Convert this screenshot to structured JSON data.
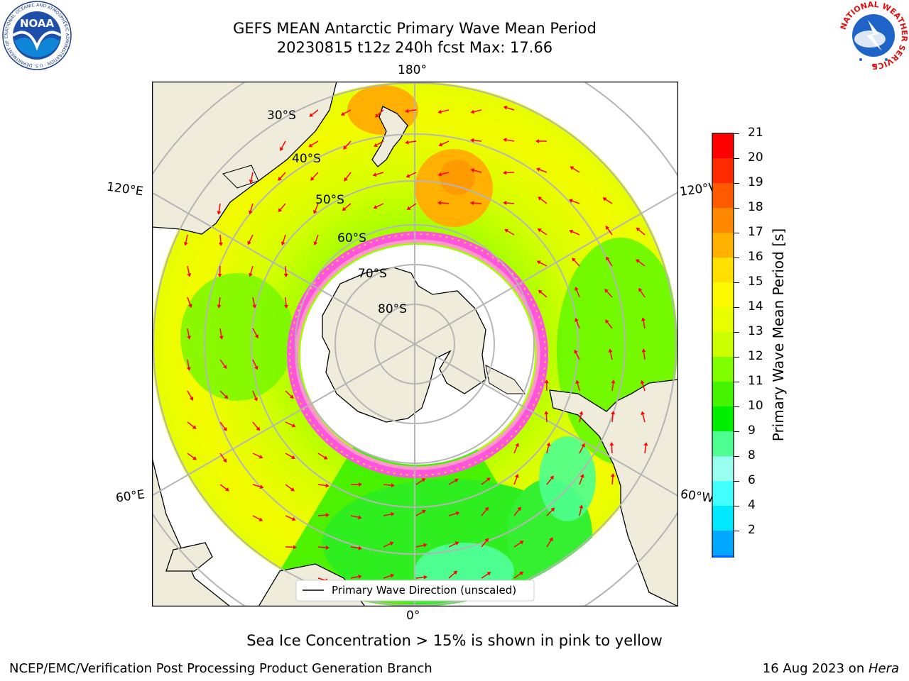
{
  "header": {
    "title_line1": "GEFS MEAN Antarctic Primary Wave Mean Period",
    "title_line2": "20230815 t12z 240h fcst   Max: 17.66"
  },
  "logos": {
    "left": {
      "icon": "noaa-logo-icon",
      "text": "NOAA",
      "ring_text": "NATIONAL OCEANIC AND ATMOSPHERIC ADMINISTRATION · U.S. DEPARTMENT OF COMMERCE"
    },
    "right": {
      "icon": "nws-logo-icon",
      "ring_text": "NATIONAL WEATHER SERVICE"
    }
  },
  "map": {
    "longitude_labels": [
      "180°",
      "120°E",
      "120°W",
      "60°E",
      "60°W",
      "0°"
    ],
    "latitude_labels": [
      "30°S",
      "40°S",
      "50°S",
      "60°S",
      "70°S",
      "80°S"
    ],
    "legend_label": "Primary Wave Direction (unscaled)",
    "colors": {
      "land": "#efecdc",
      "grid": "#b5b5b5",
      "arrows": "#ff0000",
      "ice_edge": "#ff44dd"
    }
  },
  "colorbar": {
    "label": "Primary Wave Mean Period [s]",
    "ticks": [
      "21",
      "20",
      "19",
      "18",
      "17",
      "16",
      "15",
      "14",
      "13",
      "12",
      "11",
      "10",
      "9",
      "8",
      "6",
      "4",
      "2"
    ],
    "colors": [
      "#ff0000",
      "#ff2a00",
      "#ff5a00",
      "#ff8800",
      "#ffb000",
      "#ffe000",
      "#fbf800",
      "#e8ff00",
      "#ccff00",
      "#80ff00",
      "#44f400",
      "#00ee00",
      "#4dff90",
      "#99ffee",
      "#44ffff",
      "#00e8ff",
      "#00a8ff",
      "#0060ff"
    ],
    "under_color": "#0000ff"
  },
  "footer": {
    "note": "Sea Ice Concentration > 15% is shown in pink to yellow",
    "credit": "NCEP/EMC/Verification Post Processing Product Generation Branch",
    "date": "16 Aug 2023 on ",
    "host": "Hera"
  }
}
